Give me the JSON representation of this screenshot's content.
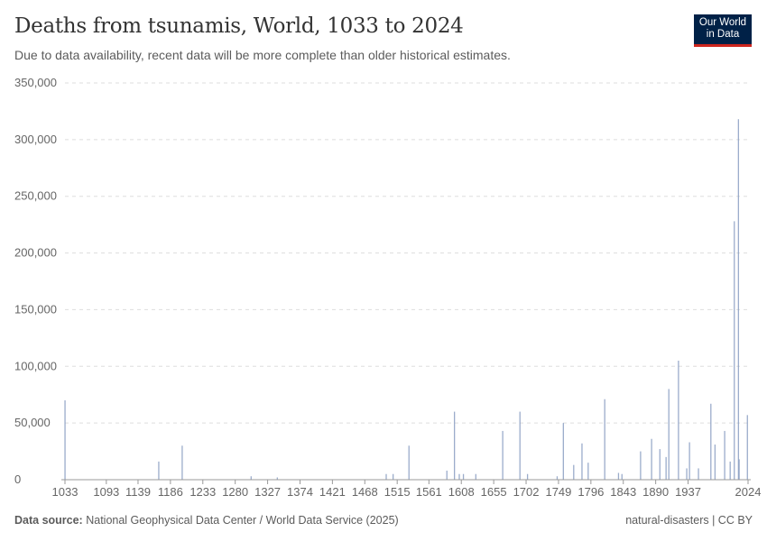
{
  "header": {
    "title": "Deaths from tsunamis, World, 1033 to 2024",
    "subtitle": "Due to data availability, recent data will be more complete than older historical estimates.",
    "logo": "Our World in Data"
  },
  "footer": {
    "source_label": "Data source:",
    "source": "National Geophysical Data Center / World Data Service (2025)",
    "license": "natural-disasters | CC BY"
  },
  "chart_data": {
    "type": "bar",
    "title": "Deaths from tsunamis, World, 1033 to 2024",
    "xlim": [
      1033,
      2024
    ],
    "ylim": [
      0,
      350000
    ],
    "grid": true,
    "bar_color": "#8a9dc2",
    "yticks": [
      0,
      50000,
      100000,
      150000,
      200000,
      250000,
      300000,
      350000
    ],
    "ytick_labels": [
      "0",
      "50,000",
      "100,000",
      "150,000",
      "200,000",
      "250,000",
      "300,000",
      "350,000"
    ],
    "xticks": [
      1033,
      1093,
      1139,
      1186,
      1233,
      1280,
      1327,
      1374,
      1421,
      1468,
      1515,
      1561,
      1608,
      1655,
      1702,
      1749,
      1796,
      1843,
      1890,
      1937,
      2024
    ],
    "x": [
      1033,
      1169,
      1203,
      1303,
      1341,
      1499,
      1509,
      1532,
      1587,
      1598,
      1605,
      1611,
      1629,
      1668,
      1693,
      1704,
      1747,
      1756,
      1771,
      1783,
      1792,
      1816,
      1836,
      1841,
      1868,
      1884,
      1896,
      1905,
      1909,
      1923,
      1935,
      1939,
      1952,
      1970,
      1976,
      1990,
      1998,
      2004,
      2010,
      2011,
      2023
    ],
    "values": [
      70000,
      16000,
      30000,
      3000,
      2000,
      5000,
      5000,
      30000,
      8000,
      60000,
      5000,
      5000,
      5000,
      43000,
      60000,
      5000,
      3000,
      50000,
      13000,
      32000,
      15000,
      71000,
      6000,
      5000,
      25000,
      36000,
      27000,
      20000,
      80000,
      105000,
      10000,
      33000,
      10000,
      67000,
      31000,
      43000,
      16000,
      228000,
      318000,
      18000,
      57000
    ]
  }
}
